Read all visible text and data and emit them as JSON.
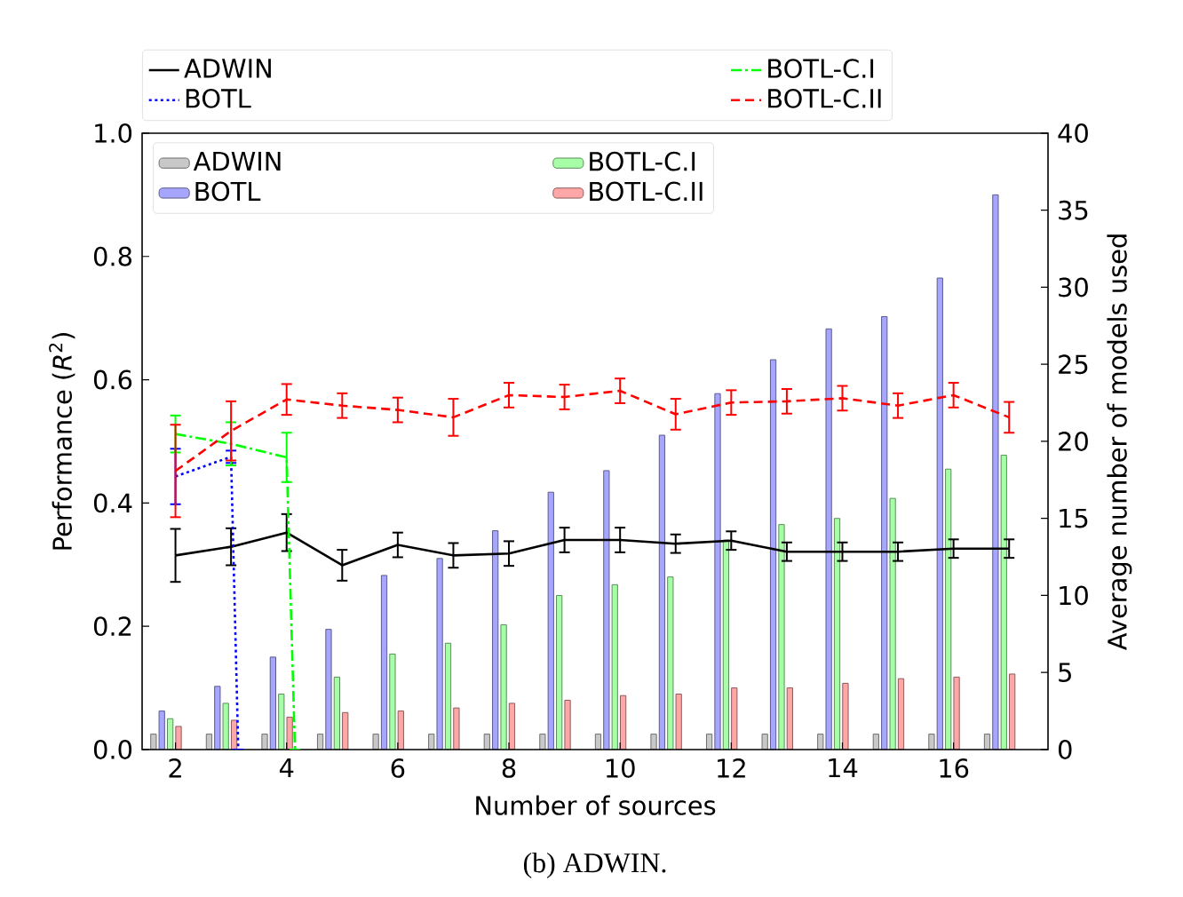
{
  "chart_data": {
    "type": "bar",
    "xlabel": "Number of sources",
    "ylabel": "Performance (*R*$^{2}$)",
    "y2label": "Average number of models used",
    "annotations": [
      "(b) ADWIN."
    ],
    "x": [
      2,
      3,
      4,
      5,
      6,
      7,
      8,
      9,
      10,
      11,
      12,
      13,
      14,
      15,
      16,
      17
    ],
    "xlim": [
      1.4,
      17.7
    ],
    "xticks": [
      2,
      4,
      6,
      8,
      10,
      12,
      14,
      16
    ],
    "ylim": [
      0,
      1
    ],
    "yticks": [
      {
        "value": 0,
        "label": "0.0"
      },
      {
        "value": 0.2,
        "label": "0.2"
      },
      {
        "value": 0.4,
        "label": "0.4"
      },
      {
        "value": 0.6,
        "label": "0.6"
      },
      {
        "value": 0.8,
        "label": "0.8"
      },
      {
        "value": 1,
        "label": "1.0"
      }
    ],
    "y2lim": [
      0,
      40
    ],
    "y2ticks": [
      0,
      5,
      10,
      15,
      20,
      25,
      30,
      35,
      40
    ],
    "legend": "top",
    "series": [
      {
        "name": "ADWIN",
        "axis": "y2",
        "color": "#c8c8c8",
        "values": [
          1,
          1,
          1,
          1,
          1,
          1,
          1,
          1,
          1,
          1,
          1,
          1,
          1,
          1,
          1,
          1
        ]
      },
      {
        "name": "BOTL",
        "axis": "y2",
        "color": "#a6a6ff",
        "values": [
          2.5,
          4.1,
          6.0,
          7.8,
          11.3,
          12.4,
          14.2,
          16.7,
          18.1,
          20.4,
          23.1,
          25.3,
          27.3,
          28.1,
          30.6,
          36
        ]
      },
      {
        "name": "BOTL-C.I",
        "axis": "y2",
        "color": "#a6ffa6",
        "values": [
          2.0,
          3.0,
          3.6,
          4.7,
          6.2,
          6.9,
          8.1,
          10.0,
          10.7,
          11.2,
          13.6,
          14.6,
          15.0,
          16.3,
          18.2,
          19.1
        ]
      },
      {
        "name": "BOTL-C.II",
        "axis": "y2",
        "color": "#ffa6a6",
        "values": [
          1.5,
          1.9,
          2.1,
          2.4,
          2.5,
          2.7,
          3.0,
          3.2,
          3.5,
          3.6,
          4.0,
          4.0,
          4.3,
          4.6,
          4.7,
          4.9
        ]
      },
      {
        "name": "ADWIN",
        "type": "line",
        "axis": "y",
        "color": "#000000",
        "line_style": "solid",
        "values": [
          0.315,
          0.329,
          0.352,
          0.299,
          0.332,
          0.315,
          0.318,
          0.34,
          0.34,
          0.334,
          0.339,
          0.321,
          0.321,
          0.321,
          0.326,
          0.326
        ],
        "errors": [
          0.043,
          0.03,
          0.03,
          0.025,
          0.02,
          0.02,
          0.02,
          0.02,
          0.02,
          0.015,
          0.015,
          0.015,
          0.015,
          0.015,
          0.015,
          0.015
        ]
      },
      {
        "name": "BOTL",
        "type": "line",
        "axis": "y",
        "color": "#0000ff",
        "line_style": "dotted",
        "x": [
          2,
          3,
          3.13
        ],
        "values": [
          0.443,
          0.475,
          0
        ],
        "errors": [
          0.045,
          0.01,
          null
        ]
      },
      {
        "name": "BOTL-C.I",
        "type": "line",
        "axis": "y",
        "color": "#00ff00",
        "line_style": "dashdot",
        "x": [
          2,
          3,
          4,
          4.15
        ],
        "values": [
          0.512,
          0.496,
          0.474,
          0
        ],
        "errors": [
          0.03,
          0.035,
          0.04,
          null
        ]
      },
      {
        "name": "BOTL-C.II",
        "type": "line",
        "axis": "y",
        "color": "#ff0000",
        "line_style": "dashed",
        "values": [
          0.452,
          0.517,
          0.568,
          0.558,
          0.551,
          0.539,
          0.575,
          0.572,
          0.582,
          0.544,
          0.563,
          0.565,
          0.57,
          0.558,
          0.575,
          0.539
        ],
        "errors": [
          0.075,
          0.048,
          0.025,
          0.02,
          0.02,
          0.03,
          0.02,
          0.02,
          0.02,
          0.025,
          0.02,
          0.02,
          0.02,
          0.02,
          0.02,
          0.025
        ]
      }
    ]
  }
}
